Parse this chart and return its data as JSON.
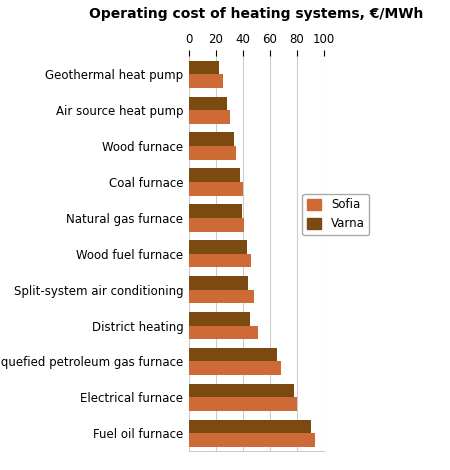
{
  "title": "Operating cost of heating systems, €/MWh",
  "categories": [
    "Geothermal heat pump",
    "Air source heat pump",
    "Wood furnace",
    "Coal furnace",
    "Natural gas furnace",
    "Wood fuel furnace",
    "Split-system air conditioning",
    "District heating",
    "Liquefied petroleum gas furnace",
    "Electrical furnace",
    "Fuel oil furnace"
  ],
  "sofia_values": [
    25,
    30,
    35,
    40,
    41,
    46,
    48,
    51,
    68,
    80,
    93
  ],
  "varna_values": [
    22,
    28,
    33,
    38,
    39,
    43,
    44,
    45,
    65,
    78,
    90
  ],
  "sofia_color": "#CD6A35",
  "varna_color": "#7B4A10",
  "xlim": [
    0,
    100
  ],
  "xticks": [
    0,
    20,
    40,
    60,
    80,
    100
  ],
  "background_color": "#ffffff",
  "grid_color": "#cccccc",
  "title_fontsize": 10,
  "label_fontsize": 8.5,
  "tick_fontsize": 8.5,
  "legend_labels": [
    "Sofia",
    "Varna"
  ],
  "bar_height": 0.38,
  "figsize": [
    4.5,
    4.7
  ],
  "dpi": 100
}
